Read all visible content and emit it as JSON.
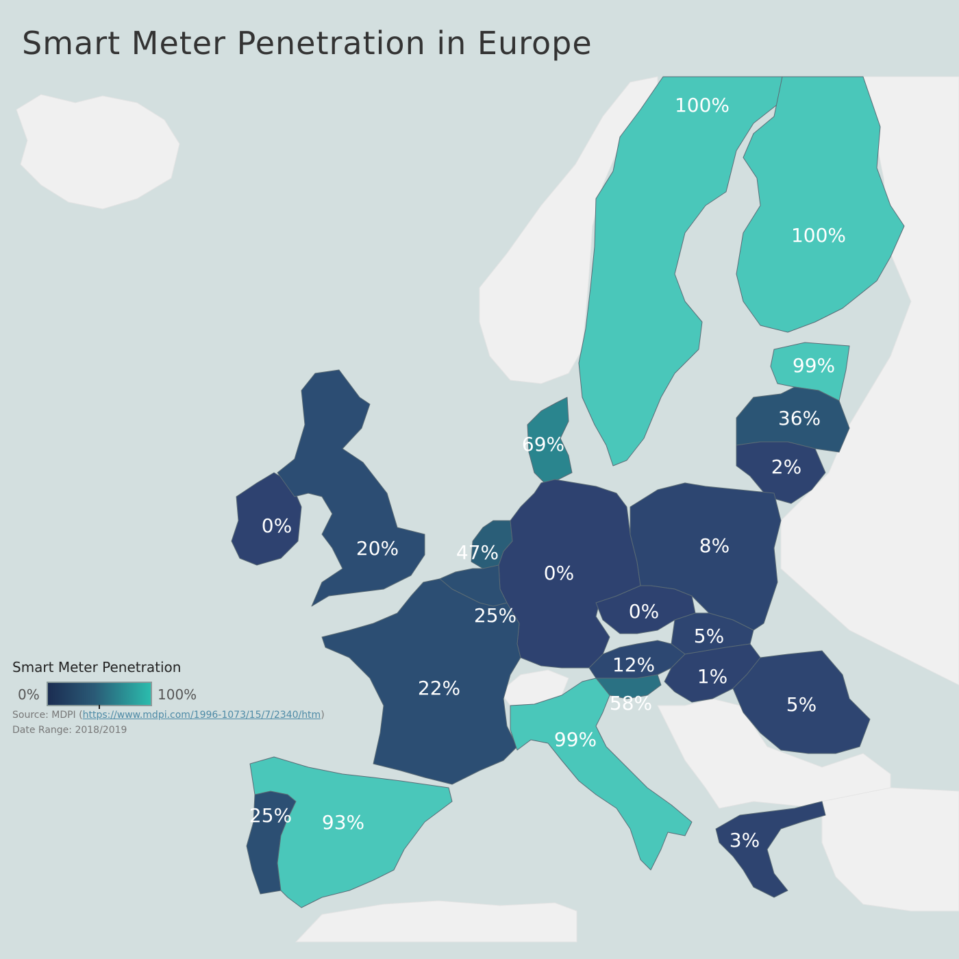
{
  "title": "Smart Meter Penetration in Europe",
  "colors": {
    "water": "#d3dfdf",
    "land_no_data": "#f0f0f0",
    "scale_low": "#1b2d52",
    "scale_mid": "#2a5a76",
    "scale_high": "#2bbcad"
  },
  "legend": {
    "title": "Smart Meter Penetration",
    "min_label": "0%",
    "max_label": "100%"
  },
  "source": {
    "prefix": "Source: MDPI (",
    "link_text": "https://www.mdpi.com/1996-1073/15/7/2340/htm",
    "suffix": ")"
  },
  "date_range": "Date Range: 2018/2019",
  "countries": [
    {
      "name": "Sweden",
      "value": 100,
      "label": "100%"
    },
    {
      "name": "Finland",
      "value": 100,
      "label": "100%"
    },
    {
      "name": "Estonia",
      "value": 99,
      "label": "99%"
    },
    {
      "name": "Latvia",
      "value": 36,
      "label": "36%"
    },
    {
      "name": "Lithuania",
      "value": 2,
      "label": "2%"
    },
    {
      "name": "Denmark",
      "value": 69,
      "label": "69%"
    },
    {
      "name": "Ireland",
      "value": 0,
      "label": "0%"
    },
    {
      "name": "United Kingdom",
      "value": 20,
      "label": "20%"
    },
    {
      "name": "Netherlands",
      "value": 47,
      "label": "47%"
    },
    {
      "name": "Germany",
      "value": 0,
      "label": "0%"
    },
    {
      "name": "Poland",
      "value": 8,
      "label": "8%"
    },
    {
      "name": "Belgium",
      "value": 25,
      "label": "25%"
    },
    {
      "name": "Czechia",
      "value": 0,
      "label": "0%"
    },
    {
      "name": "Slovakia",
      "value": 5,
      "label": "5%"
    },
    {
      "name": "Austria",
      "value": 12,
      "label": "12%"
    },
    {
      "name": "Hungary",
      "value": 1,
      "label": "1%"
    },
    {
      "name": "Romania",
      "value": 5,
      "label": "5%"
    },
    {
      "name": "France",
      "value": 22,
      "label": "22%"
    },
    {
      "name": "Slovenia",
      "value": 58,
      "label": "58%"
    },
    {
      "name": "Italy",
      "value": 99,
      "label": "99%"
    },
    {
      "name": "Portugal",
      "value": 25,
      "label": "25%"
    },
    {
      "name": "Spain",
      "value": 93,
      "label": "93%"
    },
    {
      "name": "Greece",
      "value": 3,
      "label": "3%"
    }
  ]
}
